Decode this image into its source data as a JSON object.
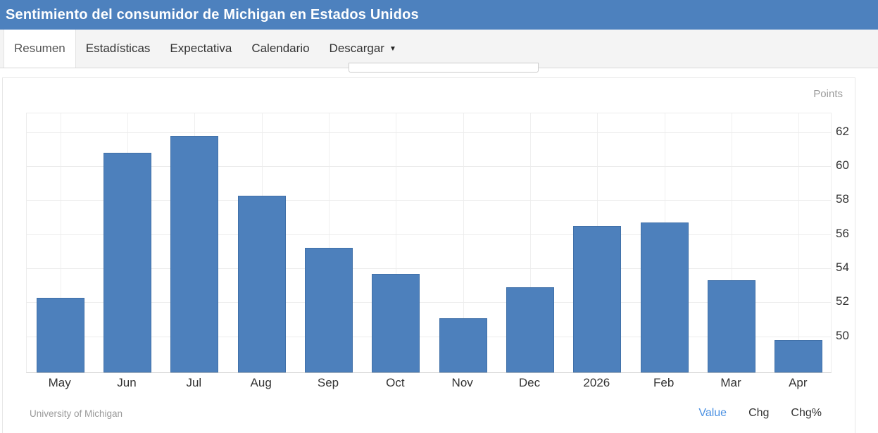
{
  "header": {
    "title": "Sentimiento del consumidor de Michigan en Estados Unidos"
  },
  "tabs": {
    "items": [
      {
        "label": "Resumen",
        "active": true
      },
      {
        "label": "Estadísticas",
        "active": false
      },
      {
        "label": "Expectativa",
        "active": false
      },
      {
        "label": "Calendario",
        "active": false
      },
      {
        "label": "Descargar",
        "active": false,
        "has_dropdown": true
      }
    ],
    "caret_icon": "▼"
  },
  "chart": {
    "unit_label": "Points",
    "source_label": "University of Michigan",
    "footer_links": [
      {
        "label": "Value",
        "active": true
      },
      {
        "label": "Chg",
        "active": false
      },
      {
        "label": "Chg%",
        "active": false
      }
    ]
  },
  "chart_data": {
    "type": "bar",
    "title": "Sentimiento del consumidor de Michigan en Estados Unidos",
    "categories": [
      "May",
      "Jun",
      "Jul",
      "Aug",
      "Sep",
      "Oct",
      "Nov",
      "Dec",
      "2026",
      "Feb",
      "Mar",
      "Apr"
    ],
    "values": [
      52.2,
      60.7,
      61.7,
      58.2,
      55.1,
      53.6,
      51.0,
      52.8,
      56.4,
      56.6,
      53.2,
      49.7
    ],
    "xlabel": "",
    "ylabel": "Points",
    "ylim": [
      47.8,
      63.1
    ],
    "yticks": [
      50,
      52,
      54,
      56,
      58,
      60,
      62
    ],
    "grid": true,
    "legend": false,
    "bar_color": "#4d80bc",
    "source": "University of Michigan"
  },
  "colors": {
    "header_bg": "#4d81be",
    "bar": "#4d80bc",
    "active_link": "#4a90e2"
  }
}
